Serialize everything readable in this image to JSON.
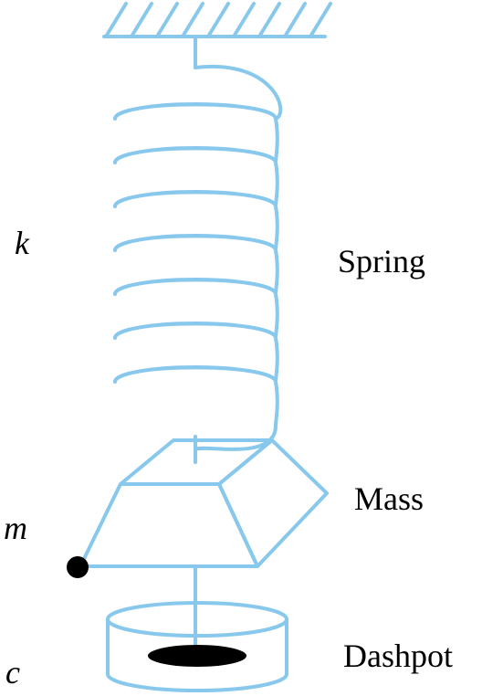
{
  "diagram": {
    "colors": {
      "stroke": "#88c8ec",
      "ink": "#000000",
      "background": "#ffffff"
    },
    "symbols": {
      "k": "k",
      "m": "m",
      "c": "c"
    },
    "labels": {
      "spring": "Spring",
      "mass": "Mass",
      "dashpot": "Dashpot"
    }
  }
}
